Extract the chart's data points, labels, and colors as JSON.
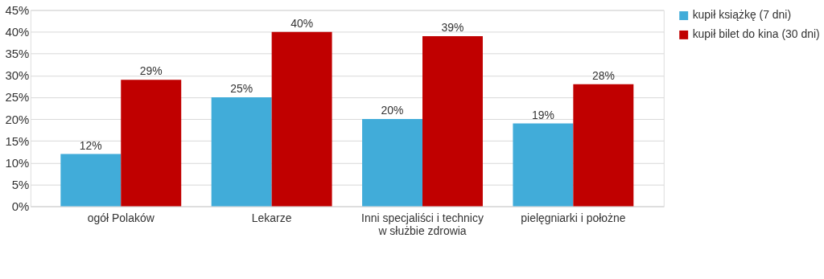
{
  "chart_data": {
    "type": "bar",
    "categories": [
      "ogół Polaków",
      "Lekarze",
      "Inni specjaliści i technicy\nw służbie zdrowia",
      "pielęgniarki i położne"
    ],
    "series": [
      {
        "name": "kupił książkę (7 dni)",
        "color": "#41acd9",
        "values": [
          12,
          25,
          20,
          19
        ],
        "value_labels": [
          "12%",
          "25%",
          "20%",
          "19%"
        ]
      },
      {
        "name": "kupił bilet do kina (30 dni)",
        "color": "#c00000",
        "values": [
          29,
          40,
          39,
          28
        ],
        "value_labels": [
          "29%",
          "40%",
          "39%",
          "28%"
        ]
      }
    ],
    "ylim": [
      0,
      45
    ],
    "yticks": [
      {
        "value": 0,
        "label": "0%"
      },
      {
        "value": 5,
        "label": "5%"
      },
      {
        "value": 10,
        "label": "10%"
      },
      {
        "value": 15,
        "label": "15%"
      },
      {
        "value": 20,
        "label": "20%"
      },
      {
        "value": 25,
        "label": "25%"
      },
      {
        "value": 30,
        "label": "30%"
      },
      {
        "value": 35,
        "label": "35%"
      },
      {
        "value": 40,
        "label": "40%"
      },
      {
        "value": 45,
        "label": "45%"
      }
    ],
    "grid": "y",
    "legend": "top right"
  }
}
